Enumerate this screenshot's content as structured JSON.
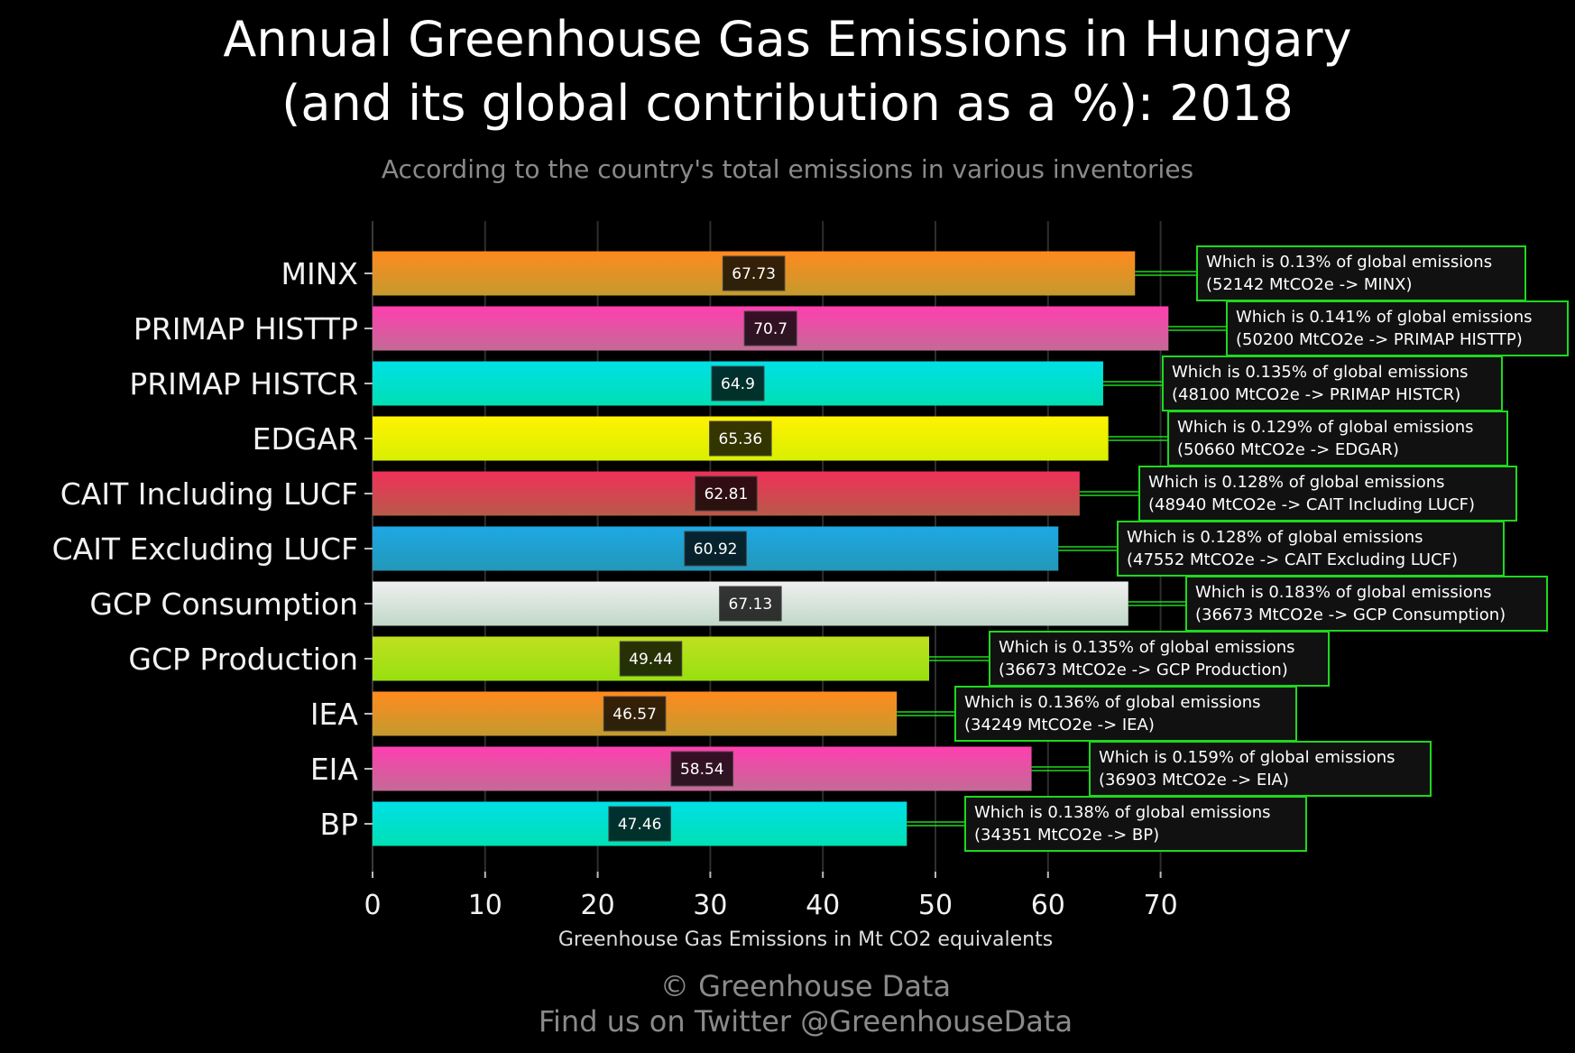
{
  "chart_data": {
    "type": "bar",
    "orientation": "horizontal",
    "title_line1": "Annual Greenhouse Gas Emissions in Hungary",
    "title_line2": "(and its global contribution as a %): 2018",
    "subtitle": "According to the country's total emissions in various inventories",
    "xlabel": "Greenhouse Gas Emissions in Mt CO2 equivalents",
    "xlim": [
      0,
      75
    ],
    "xticks": [
      0,
      10,
      20,
      30,
      40,
      50,
      60,
      70
    ],
    "grid": true,
    "categories": [
      "MINX",
      "PRIMAP HISTTP",
      "PRIMAP HISTCR",
      "EDGAR",
      "CAIT Including LUCF",
      "CAIT Excluding LUCF",
      "GCP Consumption",
      "GCP Production",
      "IEA",
      "EIA",
      "BP"
    ],
    "values": [
      67.73,
      70.7,
      64.9,
      65.36,
      62.81,
      60.92,
      67.13,
      49.44,
      46.57,
      58.54,
      47.46
    ],
    "value_labels": [
      "67.73",
      "70.7",
      "64.9",
      "65.36",
      "62.81",
      "60.92",
      "67.13",
      "49.44",
      "46.57",
      "58.54",
      "47.46"
    ],
    "annotations": [
      {
        "line1": "Which is 0.13% of global emissions",
        "line2": "(52142 MtCO2e -> MINX)"
      },
      {
        "line1": "Which is 0.141% of global emissions",
        "line2": "(50200 MtCO2e -> PRIMAP HISTTP)"
      },
      {
        "line1": "Which is 0.135% of global emissions",
        "line2": "(48100 MtCO2e -> PRIMAP HISTCR)"
      },
      {
        "line1": "Which is 0.129% of global emissions",
        "line2": "(50660 MtCO2e -> EDGAR)"
      },
      {
        "line1": "Which is 0.128% of global emissions",
        "line2": "(48940 MtCO2e -> CAIT Including LUCF)"
      },
      {
        "line1": "Which is 0.128% of global emissions",
        "line2": "(47552 MtCO2e -> CAIT Excluding LUCF)"
      },
      {
        "line1": "Which is 0.183% of global emissions",
        "line2": "(36673 MtCO2e -> GCP Consumption)"
      },
      {
        "line1": "Which is 0.135% of global emissions",
        "line2": "(36673 MtCO2e -> GCP Production)"
      },
      {
        "line1": "Which is 0.136% of global emissions",
        "line2": "(34249 MtCO2e -> IEA)"
      },
      {
        "line1": "Which is 0.159% of global emissions",
        "line2": "(36903 MtCO2e -> EIA)"
      },
      {
        "line1": "Which is 0.138% of global emissions",
        "line2": "(34351 MtCO2e -> BP)"
      }
    ],
    "colors": [
      [
        "#ff8a1e",
        "#c49a2e"
      ],
      [
        "#ff3fb0",
        "#c46a96"
      ],
      [
        "#00e0e6",
        "#00e0b4"
      ],
      [
        "#fff200",
        "#d8f000"
      ],
      [
        "#f0305a",
        "#b85a48"
      ],
      [
        "#1ea8e6",
        "#2298b8"
      ],
      [
        "#f0f0f0",
        "#c0d8c8"
      ],
      [
        "#c0e020",
        "#98e010"
      ],
      [
        "#ff8a1e",
        "#c49a2e"
      ],
      [
        "#ff3fb0",
        "#c46a96"
      ],
      [
        "#00e0e6",
        "#00e0b4"
      ]
    ],
    "annotation_border_color": "#1ed81e",
    "connector_color": "#1ed81e"
  },
  "footer": {
    "line1": "© Greenhouse Data",
    "line2": "Find us on Twitter @GreenhouseData"
  }
}
